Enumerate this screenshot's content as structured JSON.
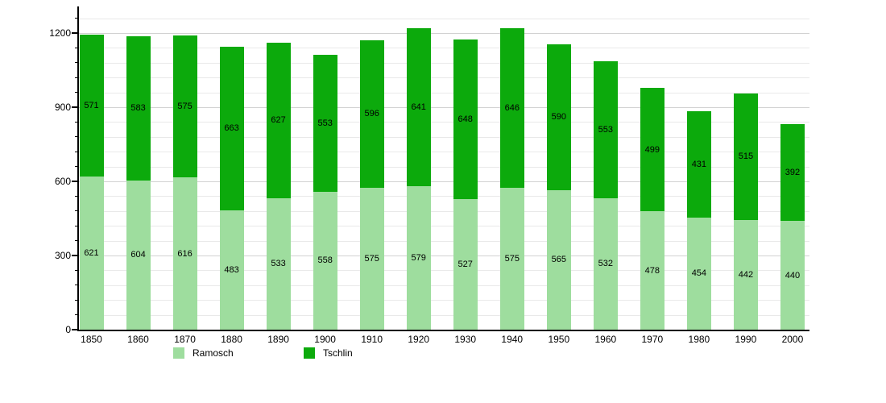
{
  "chart_data": {
    "type": "bar",
    "stacked": true,
    "title": "",
    "xlabel": "",
    "ylabel": "",
    "categories": [
      "1850",
      "1860",
      "1870",
      "1880",
      "1890",
      "1900",
      "1910",
      "1920",
      "1930",
      "1940",
      "1950",
      "1960",
      "1970",
      "1980",
      "1990",
      "2000"
    ],
    "series": [
      {
        "name": "Ramosch",
        "color": "#9edd9e",
        "values": [
          621,
          604,
          616,
          483,
          533,
          558,
          575,
          579,
          527,
          575,
          565,
          532,
          478,
          454,
          442,
          440
        ]
      },
      {
        "name": "Tschlin",
        "color": "#0caa0c",
        "values": [
          571,
          583,
          575,
          663,
          627,
          553,
          596,
          641,
          648,
          646,
          590,
          553,
          499,
          431,
          515,
          392
        ]
      }
    ],
    "yticks": [
      0,
      300,
      600,
      900,
      1200
    ],
    "ylim": [
      0,
      1300
    ],
    "minor_grid_step": 60,
    "grid": "horizontal",
    "legend_position": "bottom",
    "value_labels": true,
    "colors": {
      "axis": "#000000",
      "major_grid": "#d2d2d2",
      "minor_grid": "#e9e9e9",
      "label_text": "#000000",
      "background": "#ffffff"
    }
  }
}
